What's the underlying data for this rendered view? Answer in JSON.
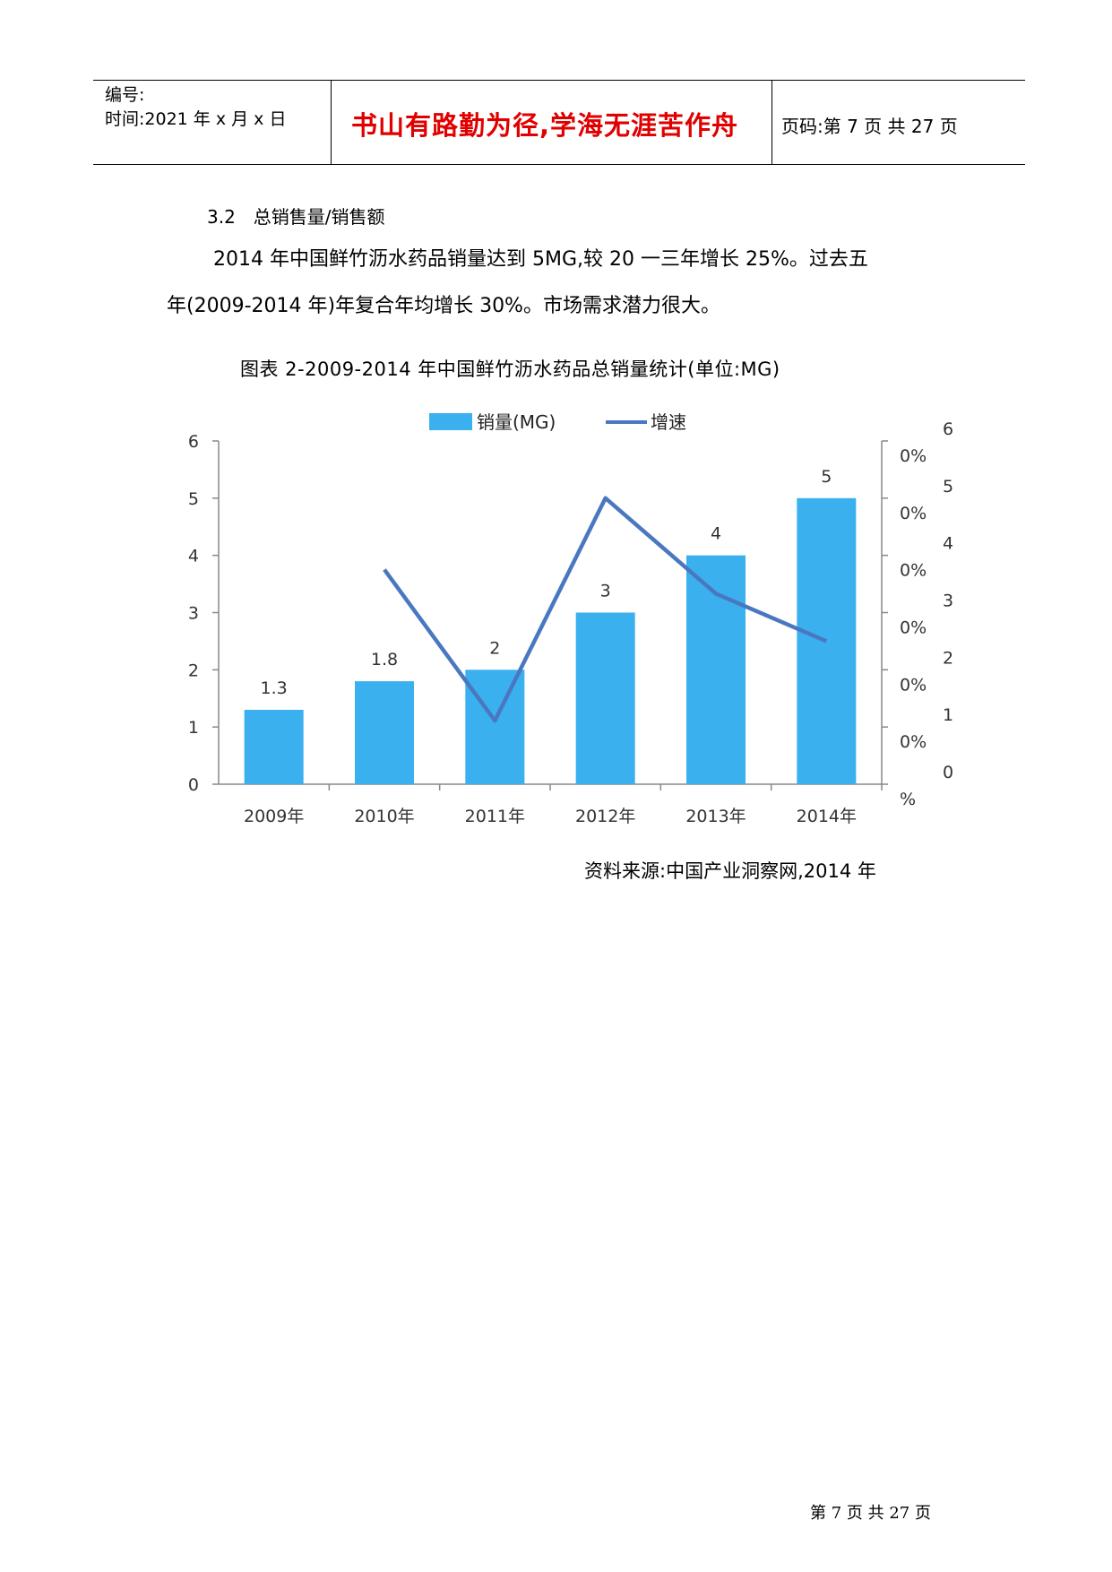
{
  "header": {
    "number_label": "编号:",
    "time_label": "时间:2021 年 x 月 x 日",
    "motto": "书山有路勤为径,学海无涯苦作舟",
    "page_label": "页码:第 7 页 共 27 页"
  },
  "section": {
    "heading": "3.2　总销售量/销售额",
    "paragraph_line1": "2014 年中国鲜竹沥水药品销量达到 5MG,较 20 一三年增长 25%。过去五",
    "paragraph_line2": "年(2009-2014 年)年复合年均增长 30%。市场需求潜力很大。"
  },
  "figure": {
    "caption": "图表 2-2009-2014 年中国鲜竹沥水药品总销量统计(单位:MG)",
    "source": "资料来源:中国产业洞察网,2014 年"
  },
  "chart_data": {
    "type": "bar",
    "title": "",
    "categories": [
      "2009年",
      "2010年",
      "2011年",
      "2012年",
      "2013年",
      "2014年"
    ],
    "series": [
      {
        "name": "销量(MG)",
        "type": "bar",
        "axis": "left",
        "color": "#3bb0ef",
        "values": [
          1.3,
          1.8,
          2,
          3,
          4,
          5
        ],
        "data_labels": [
          "1.3",
          "1.8",
          "2",
          "3",
          "4",
          "5"
        ]
      },
      {
        "name": "增速",
        "type": "line",
        "axis": "right",
        "color": "#4a78c0",
        "values": [
          null,
          37.5,
          11.1,
          50,
          33.3,
          25
        ]
      }
    ],
    "left_axis": {
      "ylim": [
        0,
        6
      ],
      "ticks": [
        "0",
        "1",
        "2",
        "3",
        "4",
        "5",
        "6"
      ]
    },
    "right_axis": {
      "ylim": [
        0,
        60
      ],
      "ticks_top": [
        "6",
        "5",
        "4",
        "3",
        "2",
        "1",
        "0"
      ],
      "ticks_bottom": [
        "0%",
        "0%",
        "0%",
        "0%",
        "0%",
        "0%",
        "%"
      ]
    },
    "legend_position": "top-center",
    "grid": false
  },
  "footer": {
    "page_text": "第 7 页 共 27 页"
  }
}
